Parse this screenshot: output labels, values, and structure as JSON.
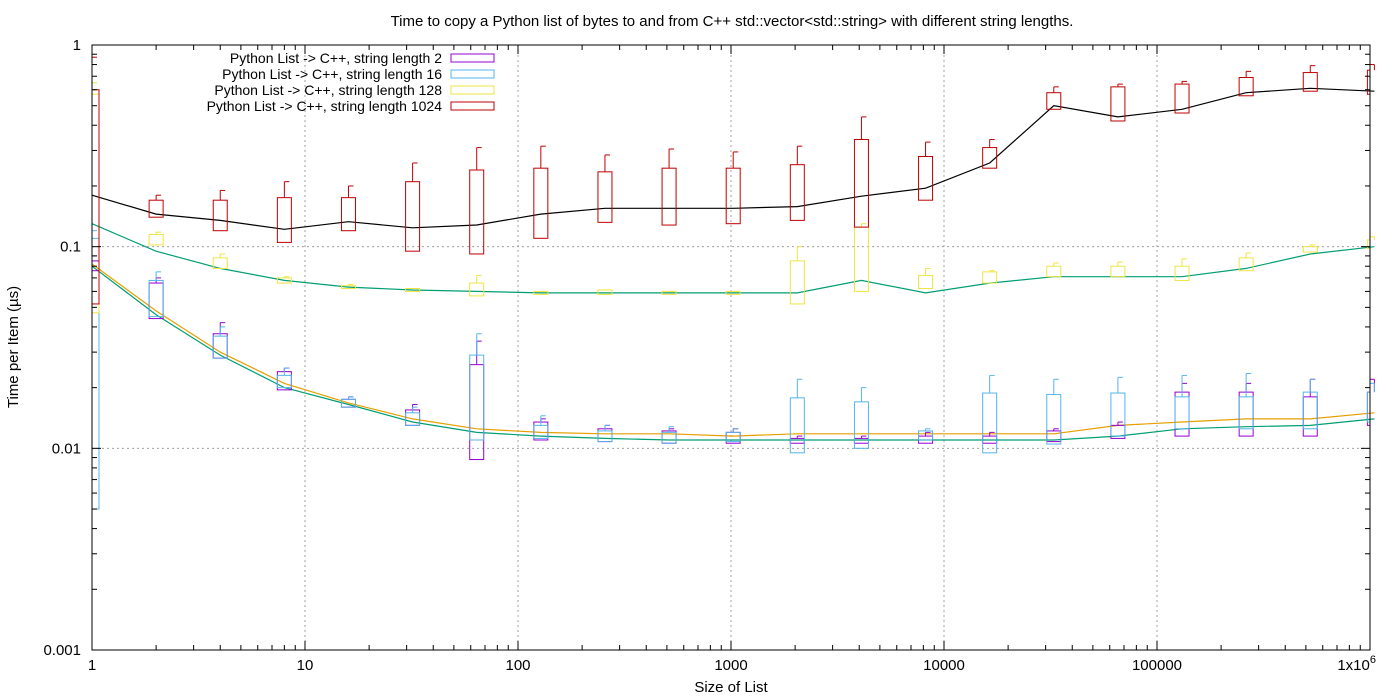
{
  "chart_data": {
    "type": "box-line",
    "title": "Time to copy a Python list of bytes to and from C++ std::vector<std::string> with different string lengths.",
    "xlabel": "Size of List",
    "ylabel": "Time per Item (µs)",
    "x_scale": "log",
    "y_scale": "log",
    "xlim": [
      1,
      1000000
    ],
    "ylim": [
      0.001,
      1
    ],
    "grid": true,
    "legend_position": "top-left",
    "x_ticks": [
      {
        "value": 1,
        "label": "1"
      },
      {
        "value": 10,
        "label": "10"
      },
      {
        "value": 100,
        "label": "100"
      },
      {
        "value": 1000,
        "label": "1000"
      },
      {
        "value": 10000,
        "label": "10000"
      },
      {
        "value": 100000,
        "label": "100000"
      },
      {
        "value": 1000000,
        "label": "1x10",
        "superscript": "6"
      }
    ],
    "y_ticks": [
      {
        "value": 0.001,
        "label": "0.001"
      },
      {
        "value": 0.01,
        "label": "0.01"
      },
      {
        "value": 0.1,
        "label": "0.1"
      },
      {
        "value": 1,
        "label": "1"
      }
    ],
    "x": [
      1,
      2,
      4,
      8,
      16,
      32,
      64,
      128,
      256,
      512,
      1024,
      2048,
      4096,
      8192,
      16384,
      32768,
      65536,
      131072,
      262144,
      524288,
      1048576
    ],
    "series": [
      {
        "name": "Python List -> C++, string length 2",
        "color": "#9400d3",
        "line_color": "#009e73",
        "median": [
          0.08,
          0.046,
          0.029,
          0.02,
          0.0165,
          0.0135,
          0.012,
          0.0115,
          0.0112,
          0.011,
          0.011,
          0.011,
          0.011,
          0.011,
          0.011,
          0.011,
          0.0115,
          0.0125,
          0.0128,
          0.013,
          0.014
        ],
        "q1": [
          0.076,
          0.044,
          0.028,
          0.0195,
          0.016,
          0.013,
          0.0088,
          0.011,
          0.0108,
          0.0106,
          0.0106,
          0.0106,
          0.0106,
          0.0106,
          0.0106,
          0.0108,
          0.0112,
          0.0115,
          0.0115,
          0.0115,
          0.013
        ],
        "q3": [
          0.085,
          0.066,
          0.037,
          0.024,
          0.0175,
          0.0155,
          0.026,
          0.0135,
          0.0125,
          0.0122,
          0.012,
          0.0112,
          0.0112,
          0.0115,
          0.0115,
          0.0122,
          0.013,
          0.019,
          0.019,
          0.018,
          0.019
        ],
        "max": [
          0.09,
          0.07,
          0.042,
          0.025,
          0.018,
          0.0165,
          0.034,
          0.014,
          0.013,
          0.0125,
          0.0125,
          0.0115,
          0.0115,
          0.012,
          0.012,
          0.0125,
          0.0135,
          0.021,
          0.021,
          0.022,
          0.022
        ]
      },
      {
        "name": "Python List -> C++, string length 16",
        "color": "#56b4e9",
        "line_color": "#009e73",
        "median": [
          0.13,
          0.095,
          0.078,
          0.068,
          0.063,
          0.061,
          0.06,
          0.059,
          0.059,
          0.059,
          0.059,
          0.059,
          0.068,
          0.059,
          0.066,
          0.071,
          0.071,
          0.071,
          0.078,
          0.092,
          0.1
        ],
        "q1": [
          0.005,
          0.045,
          0.028,
          0.02,
          0.016,
          0.013,
          0.011,
          0.0112,
          0.0108,
          0.0106,
          0.0108,
          0.0095,
          0.01,
          0.011,
          0.0095,
          0.0105,
          0.0115,
          0.0125,
          0.0125,
          0.0125,
          0.0135
        ],
        "q3": [
          0.11,
          0.068,
          0.036,
          0.023,
          0.0175,
          0.015,
          0.029,
          0.013,
          0.0122,
          0.012,
          0.012,
          0.0178,
          0.017,
          0.0122,
          0.0188,
          0.0185,
          0.0188,
          0.018,
          0.018,
          0.019,
          0.019
        ],
        "max": [
          0.12,
          0.075,
          0.04,
          0.025,
          0.018,
          0.016,
          0.037,
          0.0145,
          0.013,
          0.0128,
          0.0125,
          0.022,
          0.02,
          0.0125,
          0.023,
          0.022,
          0.0225,
          0.023,
          0.0235,
          0.022,
          0.021
        ]
      },
      {
        "name": "Python List -> C++, string length 128",
        "color": "#f0e442",
        "line_color": "#e69f00",
        "median": [
          0.082,
          0.048,
          0.03,
          0.021,
          0.0168,
          0.014,
          0.0125,
          0.012,
          0.0118,
          0.0118,
          0.0115,
          0.0118,
          0.0118,
          0.0118,
          0.0118,
          0.0118,
          0.013,
          0.0135,
          0.014,
          0.014,
          0.015
        ],
        "q1": [
          0.047,
          0.102,
          0.078,
          0.066,
          0.062,
          0.06,
          0.057,
          0.058,
          0.058,
          0.058,
          0.058,
          0.052,
          0.06,
          0.062,
          0.066,
          0.071,
          0.071,
          0.068,
          0.076,
          0.094,
          0.098
        ],
        "q3": [
          0.57,
          0.115,
          0.088,
          0.07,
          0.064,
          0.062,
          0.066,
          0.06,
          0.061,
          0.06,
          0.06,
          0.085,
          0.125,
          0.072,
          0.075,
          0.08,
          0.08,
          0.08,
          0.088,
          0.1,
          0.108
        ],
        "max": [
          0.65,
          0.118,
          0.092,
          0.071,
          0.065,
          0.062,
          0.072,
          0.06,
          0.061,
          0.06,
          0.06,
          0.1,
          0.13,
          0.078,
          0.076,
          0.083,
          0.084,
          0.087,
          0.093,
          0.102,
          0.112
        ]
      },
      {
        "name": "Python List -> C++, string length 1024",
        "color": "#c00000",
        "line_color": "#000000",
        "median": [
          0.18,
          0.145,
          0.135,
          0.122,
          0.133,
          0.124,
          0.128,
          0.145,
          0.155,
          0.155,
          0.155,
          0.158,
          0.178,
          0.195,
          0.26,
          0.5,
          0.44,
          0.48,
          0.58,
          0.61,
          0.59
        ],
        "q1": [
          0.052,
          0.14,
          0.12,
          0.105,
          0.12,
          0.095,
          0.092,
          0.11,
          0.132,
          0.128,
          0.13,
          0.135,
          0.125,
          0.17,
          0.245,
          0.48,
          0.42,
          0.46,
          0.56,
          0.59,
          0.57
        ],
        "q3": [
          0.6,
          0.17,
          0.17,
          0.175,
          0.175,
          0.21,
          0.24,
          0.245,
          0.235,
          0.245,
          0.245,
          0.255,
          0.34,
          0.28,
          0.31,
          0.58,
          0.62,
          0.64,
          0.69,
          0.73,
          0.75
        ],
        "max": [
          0.87,
          0.18,
          0.19,
          0.21,
          0.2,
          0.26,
          0.31,
          0.315,
          0.285,
          0.305,
          0.295,
          0.315,
          0.44,
          0.33,
          0.34,
          0.62,
          0.64,
          0.66,
          0.74,
          0.79,
          0.8
        ]
      }
    ]
  }
}
